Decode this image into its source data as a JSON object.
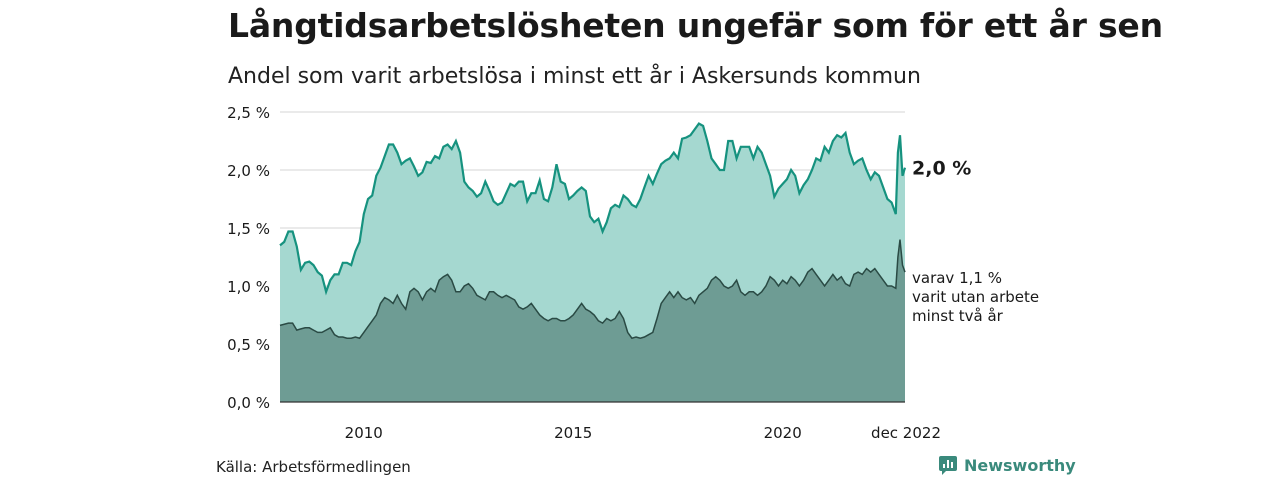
{
  "title": "Långtidsarbetslösheten ungefär som för ett år sen",
  "subtitle": "Andel som varit arbetslösa i minst ett år i Askersunds kommun",
  "source": "Källa: Arbetsförmedlingen",
  "brand": "Newsworthy",
  "colors": {
    "total_fill": "#a5d8d0",
    "total_line": "#16927f",
    "long_fill": "#6e9c94",
    "long_line": "#2a4a44",
    "grid": "#d5d5d5"
  },
  "chart_data": {
    "type": "area",
    "y_ticks": [
      "0,0 %",
      "0,5 %",
      "1,0 %",
      "1,5 %",
      "2,0 %",
      "2,5 %"
    ],
    "ylim": [
      0,
      2.5
    ],
    "x_ticks": [
      {
        "label": "2010",
        "x": 2010
      },
      {
        "label": "2015",
        "x": 2015
      },
      {
        "label": "2020",
        "x": 2020
      },
      {
        "label": "dec 2022",
        "x": 2022.92
      }
    ],
    "xlim": [
      2008.0,
      2022.92
    ],
    "series": [
      {
        "id": "total",
        "points": [
          [
            2008.0,
            1.35
          ],
          [
            2008.1,
            1.38
          ],
          [
            2008.2,
            1.47
          ],
          [
            2008.3,
            1.47
          ],
          [
            2008.4,
            1.34
          ],
          [
            2008.5,
            1.14
          ],
          [
            2008.6,
            1.2
          ],
          [
            2008.7,
            1.21
          ],
          [
            2008.8,
            1.18
          ],
          [
            2008.9,
            1.12
          ],
          [
            2009.0,
            1.09
          ],
          [
            2009.1,
            0.95
          ],
          [
            2009.2,
            1.05
          ],
          [
            2009.3,
            1.1
          ],
          [
            2009.4,
            1.1
          ],
          [
            2009.5,
            1.2
          ],
          [
            2009.6,
            1.2
          ],
          [
            2009.7,
            1.18
          ],
          [
            2009.8,
            1.3
          ],
          [
            2009.9,
            1.38
          ],
          [
            2010.0,
            1.62
          ],
          [
            2010.1,
            1.75
          ],
          [
            2010.2,
            1.78
          ],
          [
            2010.3,
            1.95
          ],
          [
            2010.4,
            2.02
          ],
          [
            2010.5,
            2.12
          ],
          [
            2010.6,
            2.22
          ],
          [
            2010.7,
            2.22
          ],
          [
            2010.8,
            2.15
          ],
          [
            2010.9,
            2.05
          ],
          [
            2011.0,
            2.08
          ],
          [
            2011.1,
            2.1
          ],
          [
            2011.2,
            2.03
          ],
          [
            2011.3,
            1.95
          ],
          [
            2011.4,
            1.98
          ],
          [
            2011.5,
            2.07
          ],
          [
            2011.6,
            2.06
          ],
          [
            2011.7,
            2.12
          ],
          [
            2011.8,
            2.1
          ],
          [
            2011.9,
            2.2
          ],
          [
            2012.0,
            2.22
          ],
          [
            2012.1,
            2.18
          ],
          [
            2012.2,
            2.25
          ],
          [
            2012.3,
            2.15
          ],
          [
            2012.4,
            1.9
          ],
          [
            2012.5,
            1.85
          ],
          [
            2012.6,
            1.82
          ],
          [
            2012.7,
            1.77
          ],
          [
            2012.8,
            1.8
          ],
          [
            2012.9,
            1.9
          ],
          [
            2013.0,
            1.82
          ],
          [
            2013.1,
            1.73
          ],
          [
            2013.2,
            1.7
          ],
          [
            2013.3,
            1.72
          ],
          [
            2013.4,
            1.8
          ],
          [
            2013.5,
            1.88
          ],
          [
            2013.6,
            1.86
          ],
          [
            2013.7,
            1.9
          ],
          [
            2013.8,
            1.9
          ],
          [
            2013.9,
            1.73
          ],
          [
            2014.0,
            1.8
          ],
          [
            2014.1,
            1.8
          ],
          [
            2014.2,
            1.91
          ],
          [
            2014.3,
            1.75
          ],
          [
            2014.4,
            1.73
          ],
          [
            2014.5,
            1.85
          ],
          [
            2014.6,
            2.05
          ],
          [
            2014.7,
            1.9
          ],
          [
            2014.8,
            1.88
          ],
          [
            2014.9,
            1.75
          ],
          [
            2015.0,
            1.78
          ],
          [
            2015.1,
            1.82
          ],
          [
            2015.2,
            1.85
          ],
          [
            2015.3,
            1.82
          ],
          [
            2015.4,
            1.6
          ],
          [
            2015.5,
            1.55
          ],
          [
            2015.6,
            1.58
          ],
          [
            2015.7,
            1.47
          ],
          [
            2015.8,
            1.55
          ],
          [
            2015.9,
            1.67
          ],
          [
            2016.0,
            1.7
          ],
          [
            2016.1,
            1.68
          ],
          [
            2016.2,
            1.78
          ],
          [
            2016.3,
            1.75
          ],
          [
            2016.4,
            1.7
          ],
          [
            2016.5,
            1.68
          ],
          [
            2016.6,
            1.75
          ],
          [
            2016.7,
            1.85
          ],
          [
            2016.8,
            1.95
          ],
          [
            2016.9,
            1.88
          ],
          [
            2017.0,
            1.97
          ],
          [
            2017.1,
            2.05
          ],
          [
            2017.2,
            2.08
          ],
          [
            2017.3,
            2.1
          ],
          [
            2017.4,
            2.15
          ],
          [
            2017.5,
            2.1
          ],
          [
            2017.6,
            2.27
          ],
          [
            2017.7,
            2.28
          ],
          [
            2017.8,
            2.3
          ],
          [
            2017.9,
            2.35
          ],
          [
            2018.0,
            2.4
          ],
          [
            2018.1,
            2.38
          ],
          [
            2018.2,
            2.25
          ],
          [
            2018.3,
            2.1
          ],
          [
            2018.4,
            2.05
          ],
          [
            2018.5,
            2.0
          ],
          [
            2018.6,
            2.0
          ],
          [
            2018.7,
            2.25
          ],
          [
            2018.8,
            2.25
          ],
          [
            2018.9,
            2.1
          ],
          [
            2019.0,
            2.2
          ],
          [
            2019.1,
            2.2
          ],
          [
            2019.2,
            2.2
          ],
          [
            2019.3,
            2.1
          ],
          [
            2019.4,
            2.2
          ],
          [
            2019.5,
            2.15
          ],
          [
            2019.6,
            2.05
          ],
          [
            2019.7,
            1.95
          ],
          [
            2019.8,
            1.77
          ],
          [
            2019.9,
            1.84
          ],
          [
            2020.0,
            1.88
          ],
          [
            2020.1,
            1.92
          ],
          [
            2020.2,
            2.0
          ],
          [
            2020.3,
            1.95
          ],
          [
            2020.4,
            1.8
          ],
          [
            2020.5,
            1.87
          ],
          [
            2020.6,
            1.92
          ],
          [
            2020.7,
            2.0
          ],
          [
            2020.8,
            2.1
          ],
          [
            2020.9,
            2.08
          ],
          [
            2021.0,
            2.2
          ],
          [
            2021.1,
            2.15
          ],
          [
            2021.2,
            2.25
          ],
          [
            2021.3,
            2.3
          ],
          [
            2021.4,
            2.28
          ],
          [
            2021.5,
            2.32
          ],
          [
            2021.6,
            2.15
          ],
          [
            2021.7,
            2.05
          ],
          [
            2021.8,
            2.08
          ],
          [
            2021.9,
            2.1
          ],
          [
            2022.0,
            2.0
          ],
          [
            2022.1,
            1.92
          ],
          [
            2022.2,
            1.98
          ],
          [
            2022.3,
            1.95
          ],
          [
            2022.4,
            1.85
          ],
          [
            2022.5,
            1.75
          ],
          [
            2022.6,
            1.72
          ],
          [
            2022.7,
            1.62
          ],
          [
            2022.75,
            2.15
          ],
          [
            2022.8,
            2.3
          ],
          [
            2022.86,
            1.95
          ],
          [
            2022.92,
            2.02
          ]
        ]
      },
      {
        "id": "long",
        "points": [
          [
            2008.0,
            0.66
          ],
          [
            2008.2,
            0.68
          ],
          [
            2008.3,
            0.68
          ],
          [
            2008.4,
            0.62
          ],
          [
            2008.5,
            0.63
          ],
          [
            2008.6,
            0.64
          ],
          [
            2008.7,
            0.64
          ],
          [
            2008.8,
            0.62
          ],
          [
            2008.9,
            0.6
          ],
          [
            2009.0,
            0.6
          ],
          [
            2009.1,
            0.62
          ],
          [
            2009.2,
            0.64
          ],
          [
            2009.3,
            0.58
          ],
          [
            2009.4,
            0.56
          ],
          [
            2009.5,
            0.56
          ],
          [
            2009.6,
            0.55
          ],
          [
            2009.7,
            0.55
          ],
          [
            2009.8,
            0.56
          ],
          [
            2009.9,
            0.55
          ],
          [
            2010.0,
            0.6
          ],
          [
            2010.1,
            0.65
          ],
          [
            2010.2,
            0.7
          ],
          [
            2010.3,
            0.75
          ],
          [
            2010.4,
            0.85
          ],
          [
            2010.5,
            0.9
          ],
          [
            2010.6,
            0.88
          ],
          [
            2010.7,
            0.85
          ],
          [
            2010.8,
            0.92
          ],
          [
            2010.9,
            0.85
          ],
          [
            2011.0,
            0.8
          ],
          [
            2011.1,
            0.95
          ],
          [
            2011.2,
            0.98
          ],
          [
            2011.3,
            0.95
          ],
          [
            2011.4,
            0.88
          ],
          [
            2011.5,
            0.95
          ],
          [
            2011.6,
            0.98
          ],
          [
            2011.7,
            0.95
          ],
          [
            2011.8,
            1.05
          ],
          [
            2011.9,
            1.08
          ],
          [
            2012.0,
            1.1
          ],
          [
            2012.1,
            1.05
          ],
          [
            2012.2,
            0.95
          ],
          [
            2012.3,
            0.95
          ],
          [
            2012.4,
            1.0
          ],
          [
            2012.5,
            1.02
          ],
          [
            2012.6,
            0.98
          ],
          [
            2012.7,
            0.92
          ],
          [
            2012.8,
            0.9
          ],
          [
            2012.9,
            0.88
          ],
          [
            2013.0,
            0.95
          ],
          [
            2013.1,
            0.95
          ],
          [
            2013.2,
            0.92
          ],
          [
            2013.3,
            0.9
          ],
          [
            2013.4,
            0.92
          ],
          [
            2013.5,
            0.9
          ],
          [
            2013.6,
            0.88
          ],
          [
            2013.7,
            0.82
          ],
          [
            2013.8,
            0.8
          ],
          [
            2013.9,
            0.82
          ],
          [
            2014.0,
            0.85
          ],
          [
            2014.1,
            0.8
          ],
          [
            2014.2,
            0.75
          ],
          [
            2014.3,
            0.72
          ],
          [
            2014.4,
            0.7
          ],
          [
            2014.5,
            0.72
          ],
          [
            2014.6,
            0.72
          ],
          [
            2014.7,
            0.7
          ],
          [
            2014.8,
            0.7
          ],
          [
            2014.9,
            0.72
          ],
          [
            2015.0,
            0.75
          ],
          [
            2015.1,
            0.8
          ],
          [
            2015.2,
            0.85
          ],
          [
            2015.3,
            0.8
          ],
          [
            2015.4,
            0.78
          ],
          [
            2015.5,
            0.75
          ],
          [
            2015.6,
            0.7
          ],
          [
            2015.7,
            0.68
          ],
          [
            2015.8,
            0.72
          ],
          [
            2015.9,
            0.7
          ],
          [
            2016.0,
            0.72
          ],
          [
            2016.1,
            0.78
          ],
          [
            2016.2,
            0.72
          ],
          [
            2016.3,
            0.6
          ],
          [
            2016.4,
            0.55
          ],
          [
            2016.5,
            0.56
          ],
          [
            2016.6,
            0.55
          ],
          [
            2016.7,
            0.56
          ],
          [
            2016.8,
            0.58
          ],
          [
            2016.9,
            0.6
          ],
          [
            2017.0,
            0.72
          ],
          [
            2017.1,
            0.85
          ],
          [
            2017.2,
            0.9
          ],
          [
            2017.3,
            0.95
          ],
          [
            2017.4,
            0.9
          ],
          [
            2017.5,
            0.95
          ],
          [
            2017.6,
            0.9
          ],
          [
            2017.7,
            0.88
          ],
          [
            2017.8,
            0.9
          ],
          [
            2017.9,
            0.85
          ],
          [
            2018.0,
            0.92
          ],
          [
            2018.1,
            0.95
          ],
          [
            2018.2,
            0.98
          ],
          [
            2018.3,
            1.05
          ],
          [
            2018.4,
            1.08
          ],
          [
            2018.5,
            1.05
          ],
          [
            2018.6,
            1.0
          ],
          [
            2018.7,
            0.98
          ],
          [
            2018.8,
            1.0
          ],
          [
            2018.9,
            1.05
          ],
          [
            2019.0,
            0.95
          ],
          [
            2019.1,
            0.92
          ],
          [
            2019.2,
            0.95
          ],
          [
            2019.3,
            0.95
          ],
          [
            2019.4,
            0.92
          ],
          [
            2019.5,
            0.95
          ],
          [
            2019.6,
            1.0
          ],
          [
            2019.7,
            1.08
          ],
          [
            2019.8,
            1.05
          ],
          [
            2019.9,
            1.0
          ],
          [
            2020.0,
            1.05
          ],
          [
            2020.1,
            1.02
          ],
          [
            2020.2,
            1.08
          ],
          [
            2020.3,
            1.05
          ],
          [
            2020.4,
            1.0
          ],
          [
            2020.5,
            1.05
          ],
          [
            2020.6,
            1.12
          ],
          [
            2020.7,
            1.15
          ],
          [
            2020.8,
            1.1
          ],
          [
            2020.9,
            1.05
          ],
          [
            2021.0,
            1.0
          ],
          [
            2021.1,
            1.05
          ],
          [
            2021.2,
            1.1
          ],
          [
            2021.3,
            1.05
          ],
          [
            2021.4,
            1.08
          ],
          [
            2021.5,
            1.02
          ],
          [
            2021.6,
            1.0
          ],
          [
            2021.7,
            1.1
          ],
          [
            2021.8,
            1.12
          ],
          [
            2021.9,
            1.1
          ],
          [
            2022.0,
            1.15
          ],
          [
            2022.1,
            1.12
          ],
          [
            2022.2,
            1.15
          ],
          [
            2022.3,
            1.1
          ],
          [
            2022.4,
            1.05
          ],
          [
            2022.5,
            1.0
          ],
          [
            2022.6,
            1.0
          ],
          [
            2022.7,
            0.98
          ],
          [
            2022.75,
            1.25
          ],
          [
            2022.8,
            1.4
          ],
          [
            2022.86,
            1.18
          ],
          [
            2022.92,
            1.12
          ]
        ]
      }
    ],
    "end_label": "2,0 %",
    "sub_label": [
      "varav 1,1 %",
      "varit utan arbete",
      "minst två år"
    ]
  }
}
